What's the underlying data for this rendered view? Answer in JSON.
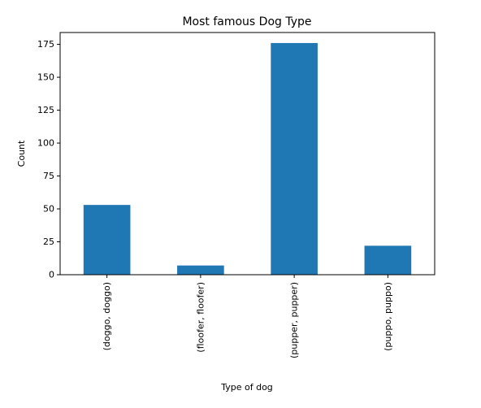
{
  "chart_data": {
    "type": "bar",
    "title": "Most famous Dog Type",
    "xlabel": "Type of dog",
    "ylabel": "Count",
    "categories": [
      "(doggo, doggo)",
      "(floofer, floofer)",
      "(pupper, pupper)",
      "(puppo, puppo)"
    ],
    "values": [
      53,
      7,
      176,
      22
    ],
    "ylim": [
      0,
      184
    ],
    "yticks": [
      0,
      25,
      50,
      75,
      100,
      125,
      150,
      175
    ],
    "bar_color": "#1f77b4",
    "grid": false,
    "legend": "none"
  }
}
